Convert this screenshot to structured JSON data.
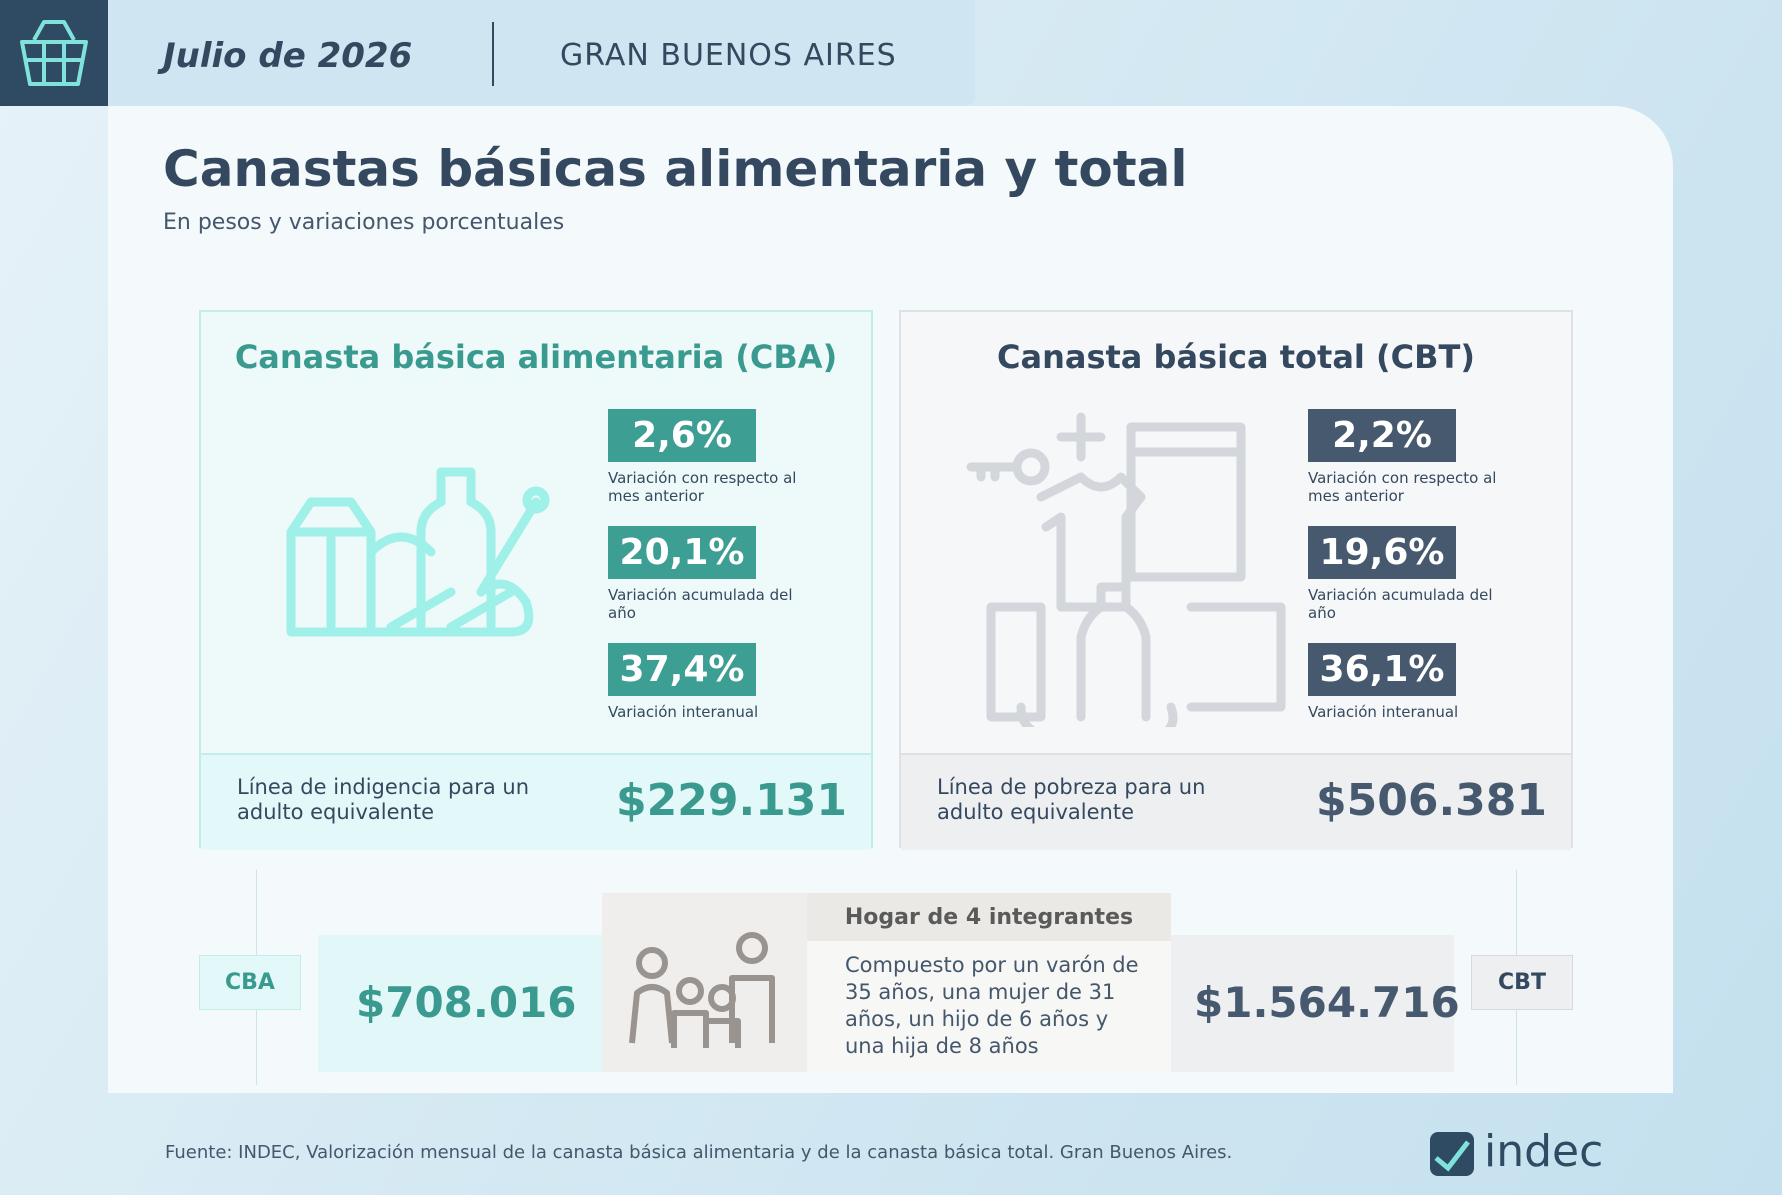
{
  "header": {
    "date": "Julio de 2026",
    "region": "GRAN BUENOS AIRES"
  },
  "title": "Canastas básicas alimentaria y total",
  "subtitle": "En pesos y variaciones porcentuales",
  "cards": [
    {
      "title": "Canasta básica alimentaria (CBA)",
      "stats": [
        {
          "value": "2,6%",
          "label": "Variación con respecto al mes anterior"
        },
        {
          "value": "20,1%",
          "label": "Variación acumulada del año"
        },
        {
          "value": "37,4%",
          "label": "Variación interanual"
        }
      ],
      "line_label": "Línea de indigencia para un adulto equivalente",
      "line_value": "$229.131"
    },
    {
      "title": "Canasta básica total (CBT)",
      "stats": [
        {
          "value": "2,2%",
          "label": "Variación con respecto al mes anterior"
        },
        {
          "value": "19,6%",
          "label": "Variación acumulada del año"
        },
        {
          "value": "36,1%",
          "label": "Variación interanual"
        }
      ],
      "line_label": "Línea de pobreza para un adulto equivalente",
      "line_value": "$506.381"
    }
  ],
  "household": {
    "cba_tag": "CBA",
    "cba_value": "$708.016",
    "title": "Hogar de 4 integrantes",
    "description": "Compuesto por un varón de 35 años, una mujer de 31 años, un hijo de 6 años y una hija de 8 años",
    "cbt_value": "$1.564.716",
    "cbt_tag": "CBT"
  },
  "source": "Fuente: INDEC, Valorización mensual de la canasta básica alimentaria y de la canasta básica total. Gran Buenos Aires.",
  "logo": "indec"
}
